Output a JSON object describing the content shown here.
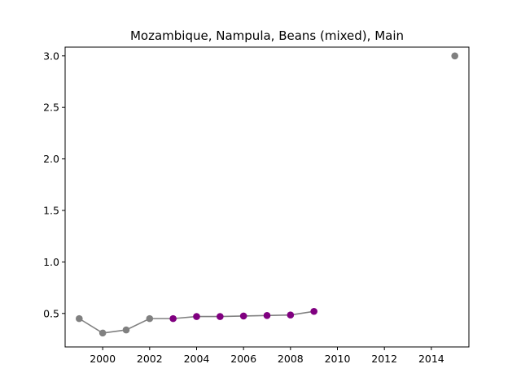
{
  "chart_data": {
    "type": "line",
    "title": "Mozambique, Nampula, Beans (mixed), Main",
    "xlabel": "",
    "ylabel": "",
    "xlim": [
      1998.4,
      2015.6
    ],
    "ylim": [
      0.175,
      3.085
    ],
    "xticks": [
      2000,
      2002,
      2004,
      2006,
      2008,
      2010,
      2012,
      2014
    ],
    "yticks": [
      0.5,
      1.0,
      1.5,
      2.0,
      2.5,
      3.0
    ],
    "ytick_labels": [
      "0.5",
      "1.0",
      "1.5",
      "2.0",
      "2.5",
      "3.0"
    ],
    "grid": false,
    "legend": "none",
    "line_color": "#808080",
    "series": [
      {
        "color": "#808080",
        "points": [
          {
            "x": 1999,
            "y": 0.45
          },
          {
            "x": 2000,
            "y": 0.31
          },
          {
            "x": 2001,
            "y": 0.34
          },
          {
            "x": 2002,
            "y": 0.45
          },
          {
            "x": 2015,
            "y": 3.0
          }
        ]
      },
      {
        "color": "#800080",
        "points": [
          {
            "x": 2003,
            "y": 0.45
          },
          {
            "x": 2004,
            "y": 0.47
          },
          {
            "x": 2005,
            "y": 0.47
          },
          {
            "x": 2006,
            "y": 0.475
          },
          {
            "x": 2007,
            "y": 0.48
          },
          {
            "x": 2008,
            "y": 0.485
          },
          {
            "x": 2009,
            "y": 0.52
          }
        ]
      }
    ],
    "line_x": [
      1999,
      2000,
      2001,
      2002,
      2003,
      2004,
      2005,
      2006,
      2007,
      2008,
      2009
    ],
    "line_y": [
      0.45,
      0.31,
      0.34,
      0.45,
      0.45,
      0.47,
      0.47,
      0.475,
      0.48,
      0.485,
      0.52
    ]
  }
}
